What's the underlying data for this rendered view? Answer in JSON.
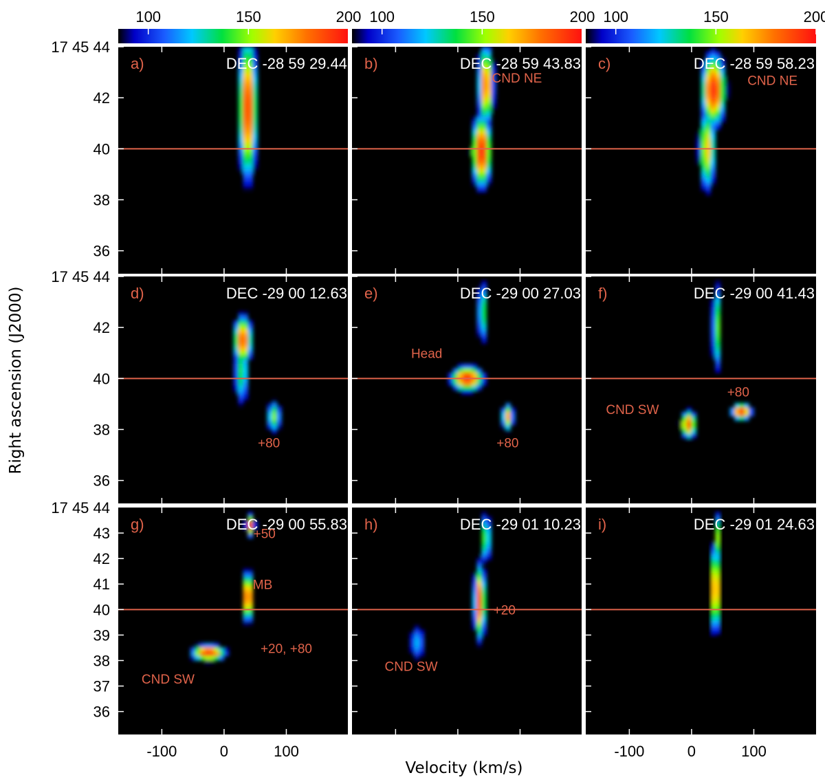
{
  "chart_data": {
    "type": "heatmap",
    "xlabel": "Velocity (km/s)",
    "ylabel": "Right ascension (J2000)",
    "x_ticks": [
      "-100",
      "0",
      "100"
    ],
    "xlim": [
      -170,
      200
    ],
    "colorbar": {
      "ticks": [
        "100",
        "150",
        "200"
      ],
      "range": [
        85,
        200
      ]
    },
    "y_first_label": "17 45 44",
    "y_ticks_default": [
      "42",
      "40",
      "38",
      "36"
    ],
    "y_ticks_row3": [
      "43",
      "42",
      "41",
      "40",
      "39",
      "38",
      "37",
      "36"
    ],
    "panels": [
      {
        "letter": "a)",
        "dec": "DEC -28 59 29.44",
        "labels": [],
        "blobs": [
          {
            "v": 38,
            "ra": 41.6,
            "sv": 14,
            "sra": 2.6,
            "amp": 190
          }
        ]
      },
      {
        "letter": "b)",
        "dec": "DEC -28 59 43.83",
        "labels": [
          {
            "text": "CND NE",
            "v": 95,
            "ra": 42.6
          }
        ],
        "blobs": [
          {
            "v": 45,
            "ra": 42.5,
            "sv": 12,
            "sra": 1.5,
            "amp": 180
          },
          {
            "v": 38,
            "ra": 39.9,
            "sv": 15,
            "sra": 1.3,
            "amp": 195
          }
        ]
      },
      {
        "letter": "c)",
        "dec": "DEC -28 59 58.23",
        "labels": [
          {
            "text": "CND NE",
            "v": 130,
            "ra": 42.5
          }
        ],
        "blobs": [
          {
            "v": 35,
            "ra": 42.3,
            "sv": 18,
            "sra": 1.3,
            "amp": 195
          },
          {
            "v": 25,
            "ra": 40.0,
            "sv": 13,
            "sra": 1.6,
            "amp": 165
          }
        ]
      },
      {
        "letter": "d)",
        "dec": "DEC -29 00 12.63",
        "labels": [
          {
            "text": "+80",
            "v": 72,
            "ra": 37.3
          }
        ],
        "blobs": [
          {
            "v": 30,
            "ra": 41.5,
            "sv": 14,
            "sra": 0.9,
            "amp": 185
          },
          {
            "v": 28,
            "ra": 40.3,
            "sv": 12,
            "sra": 1.4,
            "amp": 140
          },
          {
            "v": 80,
            "ra": 38.5,
            "sv": 11,
            "sra": 0.6,
            "amp": 150
          }
        ]
      },
      {
        "letter": "e)",
        "dec": "DEC -29 00 27.03",
        "labels": [
          {
            "text": "Head",
            "v": -50,
            "ra": 40.8
          },
          {
            "text": "+80",
            "v": 80,
            "ra": 37.3
          }
        ],
        "blobs": [
          {
            "v": 15,
            "ra": 40.0,
            "sv": 24,
            "sra": 0.45,
            "amp": 195
          },
          {
            "v": 80,
            "ra": 38.5,
            "sv": 9,
            "sra": 0.5,
            "amp": 170
          },
          {
            "v": 40,
            "ra": 42.6,
            "sv": 9,
            "sra": 1.3,
            "amp": 140
          }
        ]
      },
      {
        "letter": "f)",
        "dec": "DEC -29 00 41.43",
        "labels": [
          {
            "text": "CND SW",
            "v": -95,
            "ra": 38.6
          },
          {
            "text": "+80",
            "v": 75,
            "ra": 39.3
          }
        ],
        "blobs": [
          {
            "v": -5,
            "ra": 38.2,
            "sv": 12,
            "sra": 0.5,
            "amp": 185
          },
          {
            "v": 80,
            "ra": 38.7,
            "sv": 15,
            "sra": 0.3,
            "amp": 195
          },
          {
            "v": 40,
            "ra": 42.0,
            "sv": 7,
            "sra": 1.8,
            "amp": 150
          }
        ]
      },
      {
        "letter": "g)",
        "dec": "DEC -29 00 55.83",
        "labels": [
          {
            "text": "+50",
            "v": 65,
            "ra": 42.8
          },
          {
            "text": "MB",
            "v": 62,
            "ra": 40.8
          },
          {
            "text": "+20, +80",
            "v": 100,
            "ra": 38.3
          },
          {
            "text": "CND SW",
            "v": -90,
            "ra": 37.1
          }
        ],
        "blobs": [
          {
            "v": -25,
            "ra": 38.3,
            "sv": 25,
            "sra": 0.3,
            "amp": 195
          },
          {
            "v": 38,
            "ra": 40.5,
            "sv": 8,
            "sra": 0.9,
            "amp": 195
          },
          {
            "v": 42,
            "ra": 43.3,
            "sv": 7,
            "sra": 0.4,
            "amp": 185
          }
        ]
      },
      {
        "letter": "h)",
        "dec": "DEC -29 01 10.23",
        "labels": [
          {
            "text": "+20",
            "v": 75,
            "ra": 39.8
          },
          {
            "text": "CND SW",
            "v": -75,
            "ra": 37.6
          }
        ],
        "blobs": [
          {
            "v": 35,
            "ra": 40.3,
            "sv": 9,
            "sra": 1.4,
            "amp": 185
          },
          {
            "v": -65,
            "ra": 38.7,
            "sv": 14,
            "sra": 0.8,
            "amp": 120
          },
          {
            "v": 45,
            "ra": 42.8,
            "sv": 7,
            "sra": 1.0,
            "amp": 155
          }
        ]
      },
      {
        "letter": "i)",
        "dec": "DEC -29 01 24.63",
        "labels": [],
        "blobs": [
          {
            "v": 38,
            "ra": 40.8,
            "sv": 8,
            "sra": 1.6,
            "amp": 185
          },
          {
            "v": 42,
            "ra": 42.8,
            "sv": 7,
            "sra": 1.0,
            "amp": 150
          }
        ]
      }
    ],
    "reference_line_ra": 40.0,
    "grid": false
  }
}
